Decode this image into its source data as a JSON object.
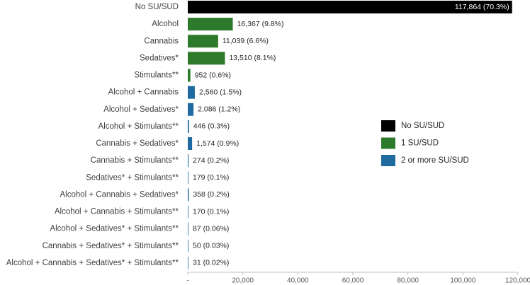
{
  "chart_data": {
    "type": "hbar",
    "categories": [
      "No SU/SUD",
      "Alcohol",
      "Cannabis",
      "Sedatives*",
      "Stimulants**",
      "Alcohol + Cannabis",
      "Alcohol + Sedatives*",
      "Alcohol + Stimulants**",
      "Cannabis + Sedatives*",
      "Cannabis + Stimulants**",
      "Sedatives* + Stimulants**",
      "Alcohol + Cannabis + Sedatives*",
      "Alcohol + Cannabis + Stimulants**",
      "Alcohol + Sedatives* + Stimulants**",
      "Cannabis + Sedatives* + Stimulants**",
      "Alcohol + Cannabis + Sedatives* + Stimulants**"
    ],
    "series": [
      {
        "name": "No SU/SUD",
        "color": "#000000",
        "values": [
          117864,
          null,
          null,
          null,
          null,
          null,
          null,
          null,
          null,
          null,
          null,
          null,
          null,
          null,
          null,
          null
        ],
        "value_labels": [
          "117,864 (70.3%)",
          null,
          null,
          null,
          null,
          null,
          null,
          null,
          null,
          null,
          null,
          null,
          null,
          null,
          null,
          null
        ]
      },
      {
        "name": "1 SU/SUD",
        "color": "#2e7a2b",
        "values": [
          null,
          16367,
          11039,
          13510,
          952,
          null,
          null,
          null,
          null,
          null,
          null,
          null,
          null,
          null,
          null,
          null
        ],
        "value_labels": [
          null,
          "16,367 (9.8%)",
          "11,039 (6.6%)",
          "13,510 (8.1%)",
          "952 (0.6%)",
          null,
          null,
          null,
          null,
          null,
          null,
          null,
          null,
          null,
          null,
          null
        ]
      },
      {
        "name": "2 or more SU/SUD",
        "color": "#1f6a9e",
        "values": [
          null,
          null,
          null,
          null,
          null,
          2560,
          2086,
          446,
          1574,
          274,
          179,
          358,
          170,
          87,
          50,
          31
        ],
        "value_labels": [
          null,
          null,
          null,
          null,
          null,
          "2,560 (1.5%)",
          "2,086 (1.2%)",
          "446 (0.3%)",
          "1,574 (0.9%)",
          "274 (0.2%)",
          "179 (0.1%)",
          "358 (0.2%)",
          "170 (0.1%)",
          "87 (0.06%)",
          "50 (0.03%)",
          "31 (0.02%)"
        ]
      }
    ],
    "xlim": [
      0,
      120000
    ],
    "xticks": [
      {
        "value": 0,
        "label": "-"
      },
      {
        "value": 20000,
        "label": "20,000"
      },
      {
        "value": 40000,
        "label": "40,000"
      },
      {
        "value": 60000,
        "label": "60,000"
      },
      {
        "value": 80000,
        "label": "80,000"
      },
      {
        "value": 100000,
        "label": "100,000"
      },
      {
        "value": 120000,
        "label": "120,000"
      }
    ],
    "legend_position": "right"
  }
}
